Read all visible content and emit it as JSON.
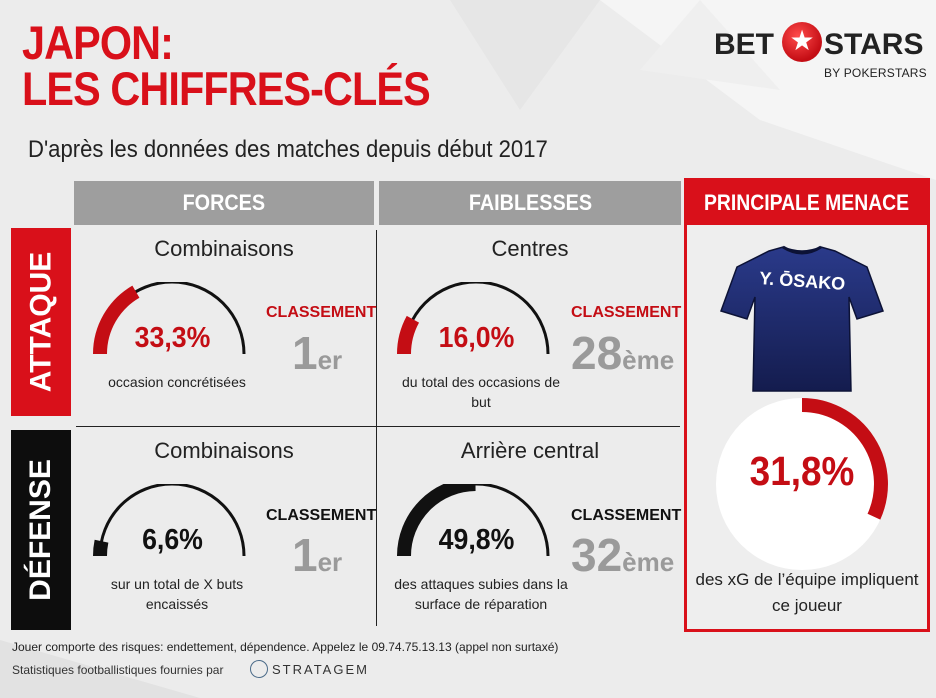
{
  "header": {
    "title_line1": "JAPON:",
    "title_line2": "LES CHIFFRES-CLÉS",
    "subtitle": "D'après les données des matches depuis début 2017"
  },
  "logo": {
    "left": "BET",
    "right": "STARS",
    "tagline": "BY POKERSTARS"
  },
  "columns": {
    "forces": "FORCES",
    "faiblesses": "FAIBLESSES",
    "menace": "PRINCIPALE MENACE"
  },
  "rows": {
    "attaque": "ATTAQUE",
    "defense": "DÉFENSE"
  },
  "cells": {
    "att_forces": {
      "title": "Combinaisons",
      "percent": "33,3%",
      "percent_value": 33.3,
      "caption": "occasion concrétisées",
      "rank_label": "CLASSEMENT",
      "rank": "1",
      "rank_suffix": "er"
    },
    "att_faiblesses": {
      "title": "Centres",
      "percent": "16,0%",
      "percent_value": 16.0,
      "caption": "du total des occasions de but",
      "rank_label": "CLASSEMENT",
      "rank": "28",
      "rank_suffix": "ème"
    },
    "def_forces": {
      "title": "Combinaisons",
      "percent": "6,6%",
      "percent_value": 6.6,
      "caption": "sur un total de X buts encaissés",
      "rank_label": "CLASSEMENT",
      "rank": "1",
      "rank_suffix": "er"
    },
    "def_faiblesses": {
      "title": "Arrière central",
      "percent": "49,8%",
      "percent_value": 49.8,
      "caption": "des attaques subies dans la surface de réparation",
      "rank_label": "CLASSEMENT",
      "rank": "32",
      "rank_suffix": "ème"
    }
  },
  "menace": {
    "jersey_name": "Y. ŌSAKO",
    "percent": "31,8%",
    "percent_value": 31.8,
    "caption": "des xG de l’équipe impliquent ce joueur"
  },
  "footer": {
    "disclaimer": "Jouer comporte des risques: endettement, dépendence. Appelez le 09.74.75.13.13 (appel non surtaxé)",
    "credits": "Statistiques footballistiques fournies par",
    "partner": "STRATAGEM"
  },
  "colors": {
    "accent": "#d9101a",
    "grey_header": "#9e9e9e",
    "rank_grey": "#9a9a9a",
    "defense_dark": "#0d0d0d"
  }
}
